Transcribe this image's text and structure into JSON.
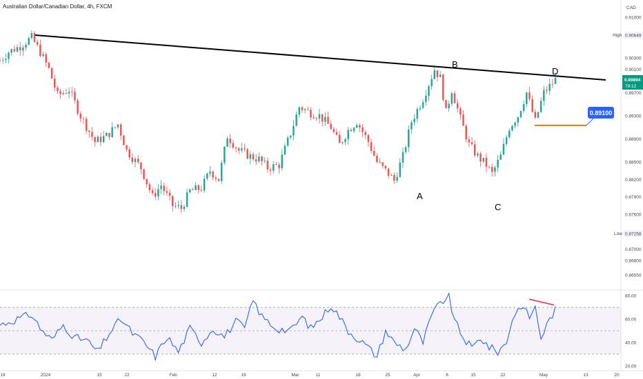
{
  "header": {
    "title": "Australian Dollar/Canadian Dollar, 4h, FXCM",
    "currency": "CAD"
  },
  "chart_data": [
    {
      "type": "candlestick",
      "title": "Australian Dollar/Canadian Dollar, 4h, FXCM",
      "y_unit": "CAD",
      "y_ticks": [
        "0.91000",
        "0.90649",
        "0.90300",
        "0.90100",
        "0.89894",
        "0.89700",
        "0.89300",
        "0.88900",
        "0.88500",
        "0.88200",
        "0.87900",
        "0.87600",
        "0.87258",
        "0.87000",
        "0.86800",
        "0.86550"
      ],
      "x_ticks": [
        "19",
        "2024",
        "15",
        "22",
        "Feb",
        "12",
        "19",
        "Mar",
        "11",
        "18",
        "25",
        "Apr",
        "8",
        "15",
        "22",
        "May",
        "13",
        "20"
      ],
      "ylim": [
        0.8635,
        0.9125
      ],
      "high": {
        "label": "High",
        "value": "0.90649"
      },
      "low": {
        "label": "Low",
        "value": "0.87258"
      },
      "last": {
        "value": "0.89894",
        "countdown": "79:12"
      },
      "anchors": [
        {
          "x": 0,
          "y": 0.9025
        },
        {
          "x": 3,
          "y": 0.904
        },
        {
          "x": 7,
          "y": 0.905
        },
        {
          "x": 11,
          "y": 0.9065
        },
        {
          "x": 14,
          "y": 0.904
        },
        {
          "x": 17,
          "y": 0.901
        },
        {
          "x": 20,
          "y": 0.8965
        },
        {
          "x": 24,
          "y": 0.8975
        },
        {
          "x": 28,
          "y": 0.893
        },
        {
          "x": 33,
          "y": 0.8885
        },
        {
          "x": 37,
          "y": 0.8895
        },
        {
          "x": 41,
          "y": 0.8915
        },
        {
          "x": 44,
          "y": 0.887
        },
        {
          "x": 49,
          "y": 0.884
        },
        {
          "x": 53,
          "y": 0.879
        },
        {
          "x": 56,
          "y": 0.881
        },
        {
          "x": 60,
          "y": 0.8775
        },
        {
          "x": 63,
          "y": 0.877
        },
        {
          "x": 66,
          "y": 0.88
        },
        {
          "x": 70,
          "y": 0.8805
        },
        {
          "x": 73,
          "y": 0.8835
        },
        {
          "x": 76,
          "y": 0.882
        },
        {
          "x": 79,
          "y": 0.8895
        },
        {
          "x": 83,
          "y": 0.887
        },
        {
          "x": 87,
          "y": 0.886
        },
        {
          "x": 90,
          "y": 0.8855
        },
        {
          "x": 93,
          "y": 0.884
        },
        {
          "x": 97,
          "y": 0.8845
        },
        {
          "x": 101,
          "y": 0.89
        },
        {
          "x": 104,
          "y": 0.8945
        },
        {
          "x": 108,
          "y": 0.8935
        },
        {
          "x": 111,
          "y": 0.893
        },
        {
          "x": 115,
          "y": 0.891
        },
        {
          "x": 118,
          "y": 0.888
        },
        {
          "x": 121,
          "y": 0.8905
        },
        {
          "x": 124,
          "y": 0.892
        },
        {
          "x": 128,
          "y": 0.8885
        },
        {
          "x": 131,
          "y": 0.885
        },
        {
          "x": 135,
          "y": 0.883
        },
        {
          "x": 137,
          "y": 0.8818
        },
        {
          "x": 140,
          "y": 0.886
        },
        {
          "x": 143,
          "y": 0.892
        },
        {
          "x": 147,
          "y": 0.896
        },
        {
          "x": 151,
          "y": 0.901
        },
        {
          "x": 153,
          "y": 0.8995
        },
        {
          "x": 155,
          "y": 0.8935
        },
        {
          "x": 157,
          "y": 0.8975
        },
        {
          "x": 160,
          "y": 0.8925
        },
        {
          "x": 163,
          "y": 0.888
        },
        {
          "x": 166,
          "y": 0.886
        },
        {
          "x": 169,
          "y": 0.8845
        },
        {
          "x": 171,
          "y": 0.883
        },
        {
          "x": 174,
          "y": 0.886
        },
        {
          "x": 177,
          "y": 0.891
        },
        {
          "x": 180,
          "y": 0.893
        },
        {
          "x": 183,
          "y": 0.897
        },
        {
          "x": 186,
          "y": 0.892
        },
        {
          "x": 189,
          "y": 0.897
        },
        {
          "x": 193,
          "y": 0.8992
        }
      ],
      "rsi": {
        "levels": [
          70,
          50,
          30
        ],
        "ylim": [
          17,
          83
        ],
        "ticks": [
          "80.00",
          "60.00",
          "40.00",
          "20.00"
        ],
        "anchors": [
          {
            "x": 0,
            "y": 55
          },
          {
            "x": 6,
            "y": 60
          },
          {
            "x": 11,
            "y": 64
          },
          {
            "x": 14,
            "y": 52
          },
          {
            "x": 18,
            "y": 42
          },
          {
            "x": 22,
            "y": 55
          },
          {
            "x": 26,
            "y": 44
          },
          {
            "x": 30,
            "y": 42
          },
          {
            "x": 34,
            "y": 32
          },
          {
            "x": 38,
            "y": 48
          },
          {
            "x": 42,
            "y": 60
          },
          {
            "x": 46,
            "y": 48
          },
          {
            "x": 50,
            "y": 40
          },
          {
            "x": 54,
            "y": 28
          },
          {
            "x": 58,
            "y": 45
          },
          {
            "x": 62,
            "y": 32
          },
          {
            "x": 66,
            "y": 52
          },
          {
            "x": 70,
            "y": 40
          },
          {
            "x": 74,
            "y": 52
          },
          {
            "x": 78,
            "y": 45
          },
          {
            "x": 82,
            "y": 58
          },
          {
            "x": 85,
            "y": 52
          },
          {
            "x": 88,
            "y": 76
          },
          {
            "x": 91,
            "y": 62
          },
          {
            "x": 96,
            "y": 52
          },
          {
            "x": 101,
            "y": 50
          },
          {
            "x": 105,
            "y": 62
          },
          {
            "x": 108,
            "y": 52
          },
          {
            "x": 112,
            "y": 62
          },
          {
            "x": 115,
            "y": 72
          },
          {
            "x": 118,
            "y": 62
          },
          {
            "x": 121,
            "y": 50
          },
          {
            "x": 124,
            "y": 44
          },
          {
            "x": 127,
            "y": 38
          },
          {
            "x": 131,
            "y": 28
          },
          {
            "x": 134,
            "y": 50
          },
          {
            "x": 137,
            "y": 40
          },
          {
            "x": 141,
            "y": 34
          },
          {
            "x": 144,
            "y": 52
          },
          {
            "x": 147,
            "y": 40
          },
          {
            "x": 150,
            "y": 63
          },
          {
            "x": 153,
            "y": 74
          },
          {
            "x": 156,
            "y": 79
          },
          {
            "x": 158,
            "y": 58
          },
          {
            "x": 161,
            "y": 44
          },
          {
            "x": 164,
            "y": 35
          },
          {
            "x": 167,
            "y": 44
          },
          {
            "x": 170,
            "y": 36
          },
          {
            "x": 173,
            "y": 32
          },
          {
            "x": 176,
            "y": 40
          },
          {
            "x": 178,
            "y": 60
          },
          {
            "x": 181,
            "y": 72
          },
          {
            "x": 184,
            "y": 62
          },
          {
            "x": 186,
            "y": 70
          },
          {
            "x": 188,
            "y": 44
          },
          {
            "x": 191,
            "y": 60
          },
          {
            "x": 193,
            "y": 68
          }
        ]
      }
    }
  ],
  "annotations": {
    "points": [
      "A",
      "B",
      "C",
      "D"
    ],
    "target": {
      "label": "0.89100",
      "value": 0.891
    },
    "colors": {
      "trendline": "#000000",
      "target_line": "#f57c00",
      "target_badge": "#2962ff",
      "divergence": "#f23645",
      "up": "#26a69a",
      "down": "#ef5350",
      "rsi": "#2962ff"
    }
  }
}
